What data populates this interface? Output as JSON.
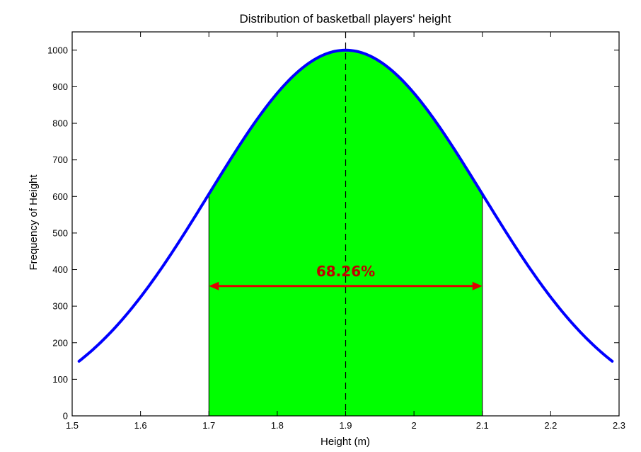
{
  "chart_data": {
    "type": "line",
    "title": "Distribution of basketball players' height",
    "xlabel": "Height (m)",
    "ylabel": "Frequency of Height",
    "xlim": [
      1.5,
      2.3
    ],
    "ylim": [
      0,
      1050
    ],
    "xticks": [
      1.5,
      1.6,
      1.7,
      1.8,
      1.9,
      2,
      2.1,
      2.2,
      2.3
    ],
    "xtick_labels": [
      "1.5",
      "1.6",
      "1.7",
      "1.8",
      "1.9",
      "2",
      "2.1",
      "2.2",
      "2.3"
    ],
    "yticks": [
      0,
      100,
      200,
      300,
      400,
      500,
      600,
      700,
      800,
      900,
      1000
    ],
    "ytick_labels": [
      "0",
      "100",
      "200",
      "300",
      "400",
      "500",
      "600",
      "700",
      "800",
      "900",
      "1000"
    ],
    "grid": false,
    "series": [
      {
        "curve": "normal",
        "mean": 1.9,
        "std": 0.2,
        "peak": 1000,
        "x_range": [
          1.51,
          2.29
        ],
        "color": "#0000ff"
      }
    ],
    "shaded_region": {
      "x_range": [
        1.7,
        2.1
      ],
      "color": "#00ff00"
    },
    "mean_line": {
      "x": 1.9,
      "style": "dashed",
      "color": "#000000"
    },
    "annotation": {
      "text": "68.26%",
      "arrow_from": 1.7,
      "arrow_to": 2.1,
      "arrow_y": 355,
      "color": "#e00000"
    }
  }
}
